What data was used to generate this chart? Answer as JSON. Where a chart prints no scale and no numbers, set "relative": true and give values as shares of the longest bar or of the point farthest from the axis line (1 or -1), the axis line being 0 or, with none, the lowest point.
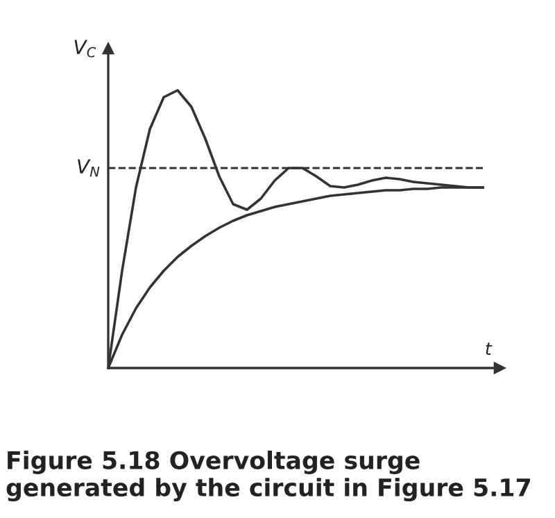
{
  "chart_data": {
    "type": "line",
    "relative": true,
    "xlabel": "t",
    "ylabel": "V$_{C}$",
    "categories": [
      null,
      null,
      null,
      null,
      null,
      null,
      null,
      null,
      null,
      null,
      null,
      null,
      null,
      null,
      null,
      null,
      null,
      null,
      null,
      null,
      null,
      null,
      null,
      null,
      null,
      null,
      null,
      null
    ],
    "series": [
      {
        "color": "#333333",
        "values": [
          0,
          0.35,
          0.65,
          0.86,
          0.975,
          1,
          0.94,
          0.825,
          0.69,
          0.59,
          0.57,
          0.61,
          0.675,
          0.72,
          0.72,
          0.69,
          0.655,
          0.65,
          0.66,
          0.675,
          0.685,
          0.68,
          0.67,
          0.665,
          0.66,
          0.655,
          0.65,
          0.65
        ]
      },
      {
        "color": "#333333",
        "values": [
          0,
          0.12,
          0.215,
          0.29,
          0.35,
          0.4,
          0.44,
          0.475,
          0.505,
          0.53,
          0.55,
          0.565,
          0.58,
          0.59,
          0.6,
          0.61,
          0.62,
          0.625,
          0.63,
          0.635,
          0.64,
          0.64,
          0.645,
          0.645,
          0.65,
          0.65,
          0.65,
          0.65
        ]
      }
    ],
    "ref_lines": [
      {
        "axis": "y",
        "value": 0.72,
        "label": "V$_{N}$",
        "line_style": "dashed",
        "color": "#333333"
      }
    ],
    "annotations": [
      "Figure 5.18 Overvoltage surge generated by the circuit in Figure 5.17"
    ],
    "legend": false,
    "grid": false,
    "marker": "none",
    "line_style": "solid"
  }
}
